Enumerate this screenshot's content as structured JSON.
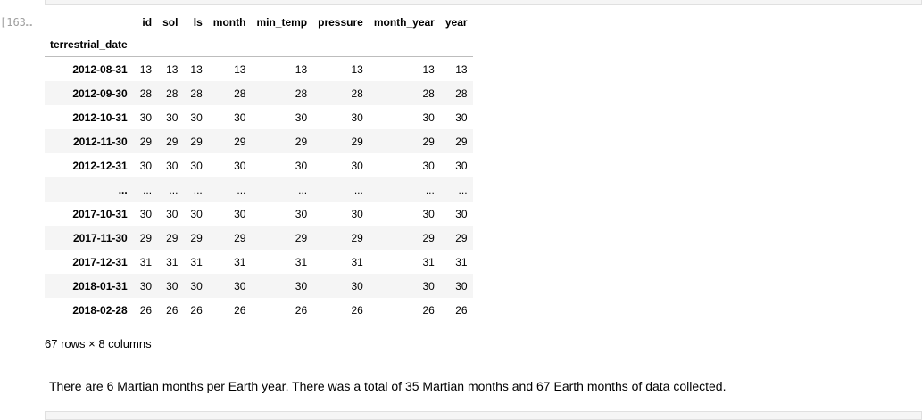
{
  "prompt_label": "[163…",
  "dataframe": {
    "index_name": "terrestrial_date",
    "columns": [
      "id",
      "sol",
      "ls",
      "month",
      "min_temp",
      "pressure",
      "month_year",
      "year"
    ],
    "rows": [
      {
        "index": "2012-08-31",
        "values": [
          "13",
          "13",
          "13",
          "13",
          "13",
          "13",
          "13",
          "13"
        ]
      },
      {
        "index": "2012-09-30",
        "values": [
          "28",
          "28",
          "28",
          "28",
          "28",
          "28",
          "28",
          "28"
        ]
      },
      {
        "index": "2012-10-31",
        "values": [
          "30",
          "30",
          "30",
          "30",
          "30",
          "30",
          "30",
          "30"
        ]
      },
      {
        "index": "2012-11-30",
        "values": [
          "29",
          "29",
          "29",
          "29",
          "29",
          "29",
          "29",
          "29"
        ]
      },
      {
        "index": "2012-12-31",
        "values": [
          "30",
          "30",
          "30",
          "30",
          "30",
          "30",
          "30",
          "30"
        ]
      },
      {
        "index": "...",
        "values": [
          "...",
          "...",
          "...",
          "...",
          "...",
          "...",
          "...",
          "..."
        ]
      },
      {
        "index": "2017-10-31",
        "values": [
          "30",
          "30",
          "30",
          "30",
          "30",
          "30",
          "30",
          "30"
        ]
      },
      {
        "index": "2017-11-30",
        "values": [
          "29",
          "29",
          "29",
          "29",
          "29",
          "29",
          "29",
          "29"
        ]
      },
      {
        "index": "2017-12-31",
        "values": [
          "31",
          "31",
          "31",
          "31",
          "31",
          "31",
          "31",
          "31"
        ]
      },
      {
        "index": "2018-01-31",
        "values": [
          "30",
          "30",
          "30",
          "30",
          "30",
          "30",
          "30",
          "30"
        ]
      },
      {
        "index": "2018-02-28",
        "values": [
          "26",
          "26",
          "26",
          "26",
          "26",
          "26",
          "26",
          "26"
        ]
      }
    ]
  },
  "shape_text": "67 rows × 8 columns",
  "markdown_text": "There are 6 Martian months per Earth year. There was a total of 35 Martian months and 67 Earth months of data collected."
}
